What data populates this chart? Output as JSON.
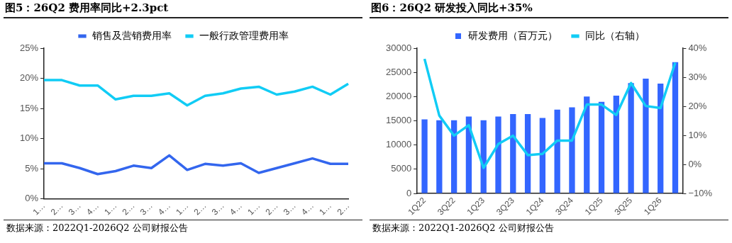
{
  "chart_data": [
    {
      "type": "line",
      "title": "图5：26Q2 费用率同比+2.3pct",
      "categories": [
        "1…",
        "2…",
        "3…",
        "4…",
        "1…",
        "2…",
        "3…",
        "4…",
        "1…",
        "2…",
        "3…",
        "4…",
        "1…",
        "2…",
        "3…",
        "4…",
        "1…",
        "2…"
      ],
      "series": [
        {
          "name": "销售及营销费用率",
          "color": "#3366ee",
          "values": [
            5.9,
            5.9,
            5.1,
            4.1,
            4.6,
            5.5,
            5.1,
            7.2,
            4.8,
            5.8,
            5.5,
            5.9,
            4.3,
            5.1,
            5.9,
            6.7,
            5.8,
            5.8
          ]
        },
        {
          "name": "一般行政管理费用率",
          "color": "#11ccf5",
          "values": [
            19.7,
            19.7,
            18.8,
            18.8,
            16.5,
            17.1,
            17.1,
            17.5,
            15.5,
            17.1,
            17.5,
            18.3,
            18.6,
            17.3,
            17.8,
            18.6,
            17.3,
            19.1
          ]
        }
      ],
      "ylim": [
        0,
        25
      ],
      "yticks": [
        {
          "value": 0,
          "label": "0%"
        },
        {
          "value": 5,
          "label": "5%"
        },
        {
          "value": 10,
          "label": "10%"
        },
        {
          "value": 15,
          "label": "15%"
        },
        {
          "value": 20,
          "label": "20%"
        },
        {
          "value": 25,
          "label": "25%"
        }
      ],
      "grid": false,
      "legend": "top",
      "marker": "none",
      "annotations": [
        "数据来源：2022Q1-2026Q2 公司财报公告"
      ]
    },
    {
      "type": "bar",
      "title": "图6：26Q2 研发投入同比+35%",
      "categories": [
        "1Q22",
        null,
        "3Q22",
        null,
        "1Q23",
        null,
        "3Q23",
        null,
        "1Q24",
        null,
        "3Q24",
        null,
        "1Q25",
        null,
        "3Q25",
        null,
        "1Q26",
        null
      ],
      "series": [
        {
          "name": "研发费用（百万元）",
          "color": "#3366ff",
          "values": [
            15300,
            15100,
            15100,
            15900,
            15100,
            15900,
            16400,
            16400,
            15600,
            17300,
            17800,
            20000,
            18900,
            20200,
            22800,
            23700,
            22700,
            27100
          ]
        },
        {
          "name": "同比（右轴）",
          "type": "line",
          "axis": "y2",
          "color": "#11ccf5",
          "values": [
            36.3,
            16.8,
            9.9,
            13.5,
            -1.2,
            7.0,
            9.9,
            3.2,
            3.6,
            8.2,
            8.2,
            20.6,
            20.6,
            17.0,
            28.0,
            20.1,
            19.4,
            35.0
          ]
        }
      ],
      "ylim": [
        0,
        30000
      ],
      "yticks": [
        0,
        5000,
        10000,
        15000,
        20000,
        25000,
        30000
      ],
      "y2lim": [
        -10,
        40
      ],
      "y2ticks": [
        {
          "value": -10,
          "label": "−10%"
        },
        {
          "value": 0,
          "label": "0%"
        },
        {
          "value": 10,
          "label": "10%"
        },
        {
          "value": 20,
          "label": "20%"
        },
        {
          "value": 30,
          "label": "30%"
        },
        {
          "value": 40,
          "label": "40%"
        }
      ],
      "grid": false,
      "legend": "top",
      "marker": "none",
      "annotations": [
        "数据来源：2022Q1-2026Q2 公司财报公告"
      ]
    }
  ]
}
